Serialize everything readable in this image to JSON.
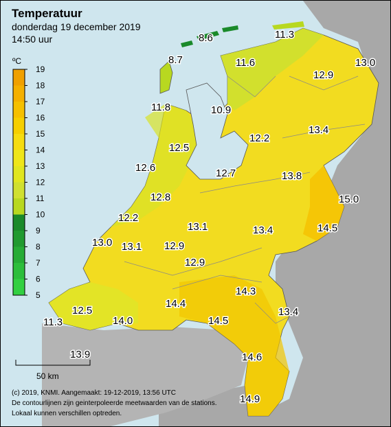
{
  "header": {
    "title": "Temperatuur",
    "date": "donderdag 19 december 2019",
    "time": "14:50 uur"
  },
  "legend": {
    "unit": "ºC",
    "ticks": [
      "19",
      "18",
      "17",
      "16",
      "15",
      "14",
      "13",
      "12",
      "11",
      "10",
      "9",
      "8",
      "7",
      "6",
      "5"
    ],
    "colors": [
      "#f0a000",
      "#f4b000",
      "#f5c000",
      "#f5cf00",
      "#f5dc10",
      "#eee61a",
      "#e0e620",
      "#d0e030",
      "#b8d820",
      "#1a8a2a",
      "#209a30",
      "#26ac36",
      "#2cbe3c",
      "#32d042"
    ]
  },
  "map": {
    "station_values": [
      {
        "label": "8.6",
        "temp": 8.6
      },
      {
        "label": "11.3",
        "temp": 11.3
      },
      {
        "label": "8.7",
        "temp": 8.7
      },
      {
        "label": "11.6",
        "temp": 11.6
      },
      {
        "label": "12.9",
        "temp": 12.9
      },
      {
        "label": "13.0",
        "temp": 13.0
      },
      {
        "label": "11.8",
        "temp": 11.8
      },
      {
        "label": "10.9",
        "temp": 10.9
      },
      {
        "label": "12.2",
        "temp": 12.2
      },
      {
        "label": "13.4",
        "temp": 13.4
      },
      {
        "label": "12.5",
        "temp": 12.5
      },
      {
        "label": "12.6",
        "temp": 12.6
      },
      {
        "label": "12.7",
        "temp": 12.7
      },
      {
        "label": "13.8",
        "temp": 13.8
      },
      {
        "label": "15.0",
        "temp": 15.0
      },
      {
        "label": "12.8",
        "temp": 12.8
      },
      {
        "label": "12.2",
        "temp": 12.2
      },
      {
        "label": "13.1",
        "temp": 13.1
      },
      {
        "label": "13.4",
        "temp": 13.4
      },
      {
        "label": "14.5",
        "temp": 14.5
      },
      {
        "label": "13.0",
        "temp": 13.0
      },
      {
        "label": "13.1",
        "temp": 13.1
      },
      {
        "label": "12.9",
        "temp": 12.9
      },
      {
        "label": "12.9",
        "temp": 12.9
      },
      {
        "label": "14.3",
        "temp": 14.3
      },
      {
        "label": "12.5",
        "temp": 12.5
      },
      {
        "label": "14.4",
        "temp": 14.4
      },
      {
        "label": "13.4",
        "temp": 13.4
      },
      {
        "label": "11.3",
        "temp": 11.3
      },
      {
        "label": "14.0",
        "temp": 14.0
      },
      {
        "label": "14.5",
        "temp": 14.5
      },
      {
        "label": "14.6",
        "temp": 14.6
      },
      {
        "label": "13.9",
        "temp": 13.9
      },
      {
        "label": "14.9",
        "temp": 14.9
      }
    ],
    "scale_label": "50 km"
  },
  "footer": {
    "line1": "(c) 2019, KNMI. Aangemaakt: 19-12-2019, 13:56 UTC",
    "line2": "De contourlijnen zijn geinterpoleerde meetwaarden van de stations.",
    "line3": "Lokaal kunnen verschillen optreden."
  }
}
